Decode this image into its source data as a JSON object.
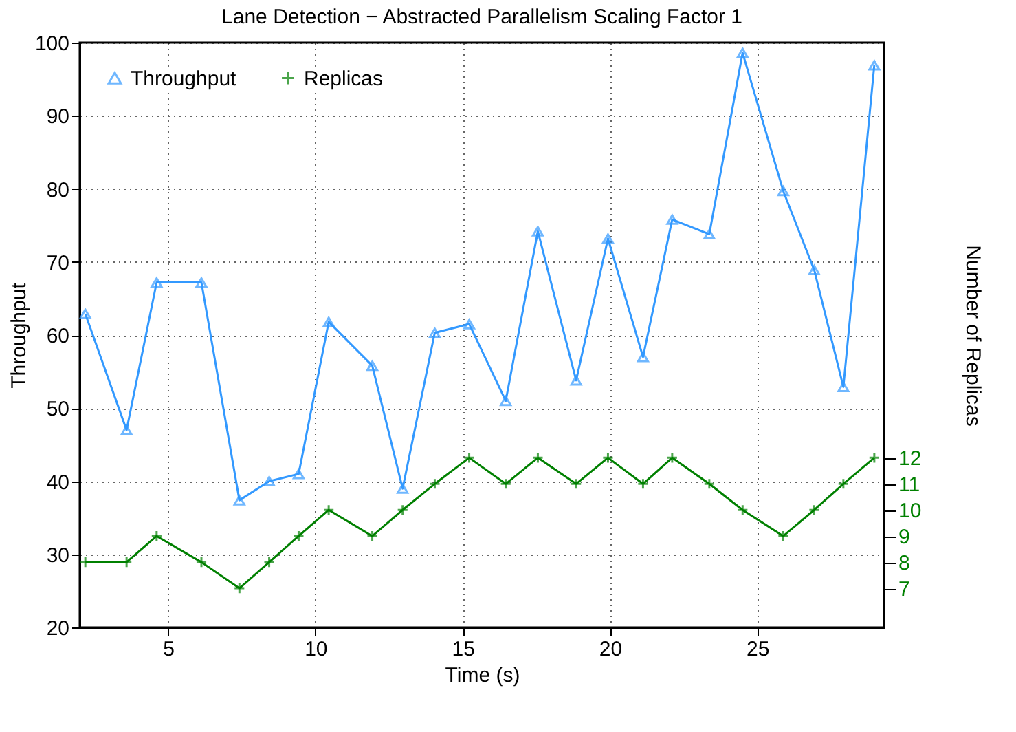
{
  "chart_data": {
    "type": "line",
    "title": "Lane Detection − Abstracted Parallelism Scaling Factor 1",
    "xlabel": "Time (s)",
    "ylabel": "Throughput",
    "y2label": "Number of Replicas",
    "xlim": [
      2,
      29.3
    ],
    "xticks": [
      5,
      10,
      15,
      20,
      25
    ],
    "ylim": [
      20,
      100
    ],
    "yticks": [
      20,
      30,
      40,
      50,
      60,
      70,
      80,
      90,
      100
    ],
    "y2lim": [
      5.5,
      27.9
    ],
    "y2ticks": [
      7,
      8,
      9,
      10,
      11,
      12
    ],
    "grid": true,
    "legend": "top left",
    "line_style": "solid",
    "series": [
      {
        "name": "Throughput",
        "color": "#3399ff",
        "marker": "triangle",
        "x": [
          2.19,
          3.59,
          4.61,
          6.13,
          7.42,
          8.43,
          9.43,
          10.45,
          11.93,
          12.96,
          14.05,
          15.22,
          16.46,
          17.55,
          18.85,
          19.93,
          21.12,
          22.11,
          23.37,
          24.5,
          25.88,
          26.93,
          27.92,
          28.97
        ],
        "values": [
          62.9,
          47.0,
          67.2,
          67.2,
          37.4,
          40.0,
          41.0,
          61.8,
          55.8,
          39.0,
          60.3,
          61.5,
          51.0,
          74.2,
          53.8,
          73.2,
          57.0,
          75.8,
          73.8,
          98.6,
          79.7,
          68.9,
          52.9,
          96.9
        ]
      },
      {
        "name": "Replicas",
        "color": "#008000",
        "marker": "cross",
        "axis": "y2",
        "x": [
          2.19,
          3.59,
          4.61,
          6.13,
          7.42,
          8.43,
          9.43,
          10.45,
          11.93,
          12.96,
          14.05,
          15.22,
          16.46,
          17.55,
          18.85,
          19.93,
          21.12,
          22.11,
          23.37,
          24.5,
          25.88,
          26.93,
          27.92,
          28.97
        ],
        "values": [
          8,
          8,
          9,
          8,
          7,
          8,
          9,
          10,
          9,
          10,
          11,
          12,
          11,
          12,
          11,
          12,
          11,
          12,
          11,
          10,
          9,
          10,
          11,
          12
        ]
      }
    ]
  }
}
